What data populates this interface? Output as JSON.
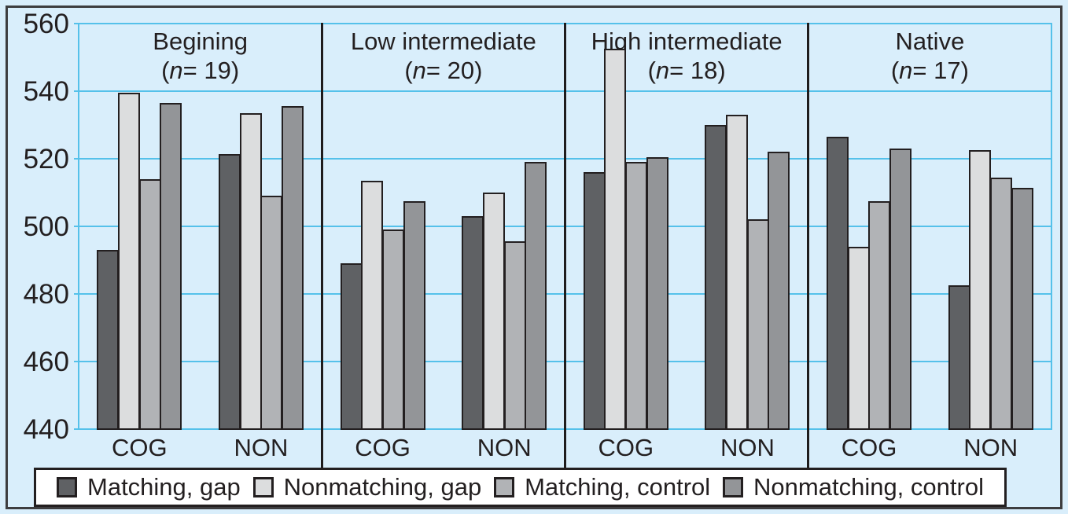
{
  "figure": {
    "background_color": "#d9eefb",
    "text_color": "#231f20",
    "grid_color": "#55c1ea",
    "frame_color": "#3d3d3f"
  },
  "chart_data": {
    "type": "bar",
    "title": "",
    "xlabel": "",
    "ylabel": "",
    "grid": true,
    "legend_position": "bottom",
    "y_axis": {
      "min": 440,
      "max": 560,
      "tick_step": 20,
      "ticks": [
        560,
        540,
        520,
        500,
        480,
        460,
        440
      ]
    },
    "series": [
      {
        "name": "Matching, gap",
        "color": "#5f6164"
      },
      {
        "name": "Nonmatching, gap",
        "color": "#dcddde"
      },
      {
        "name": "Matching, control",
        "color": "#b1b3b6"
      },
      {
        "name": "Nonmatching, control",
        "color": "#939598"
      }
    ],
    "panels": [
      {
        "title": "Begining",
        "subtitle": "(n= 19)",
        "groups": [
          {
            "label": "COG",
            "values": [
              493,
              539.5,
              514,
              536.5
            ]
          },
          {
            "label": "NON",
            "values": [
              521.5,
              533.5,
              509,
              535.5
            ]
          }
        ]
      },
      {
        "title": "Low intermediate",
        "subtitle": "(n= 20)",
        "groups": [
          {
            "label": "COG",
            "values": [
              489,
              513.5,
              499,
              507.5
            ]
          },
          {
            "label": "NON",
            "values": [
              503,
              510,
              495.5,
              519
            ]
          }
        ]
      },
      {
        "title": "High intermediate",
        "subtitle": "(n= 18)",
        "groups": [
          {
            "label": "COG",
            "values": [
              516,
              552.5,
              519,
              520.5
            ]
          },
          {
            "label": "NON",
            "values": [
              530,
              533,
              502,
              522
            ]
          }
        ]
      },
      {
        "title": "Native",
        "subtitle": "(n= 17)",
        "groups": [
          {
            "label": "COG",
            "values": [
              526.5,
              494,
              507.5,
              523
            ]
          },
          {
            "label": "NON",
            "values": [
              482.5,
              522.5,
              514.5,
              511.5
            ]
          }
        ]
      }
    ]
  }
}
